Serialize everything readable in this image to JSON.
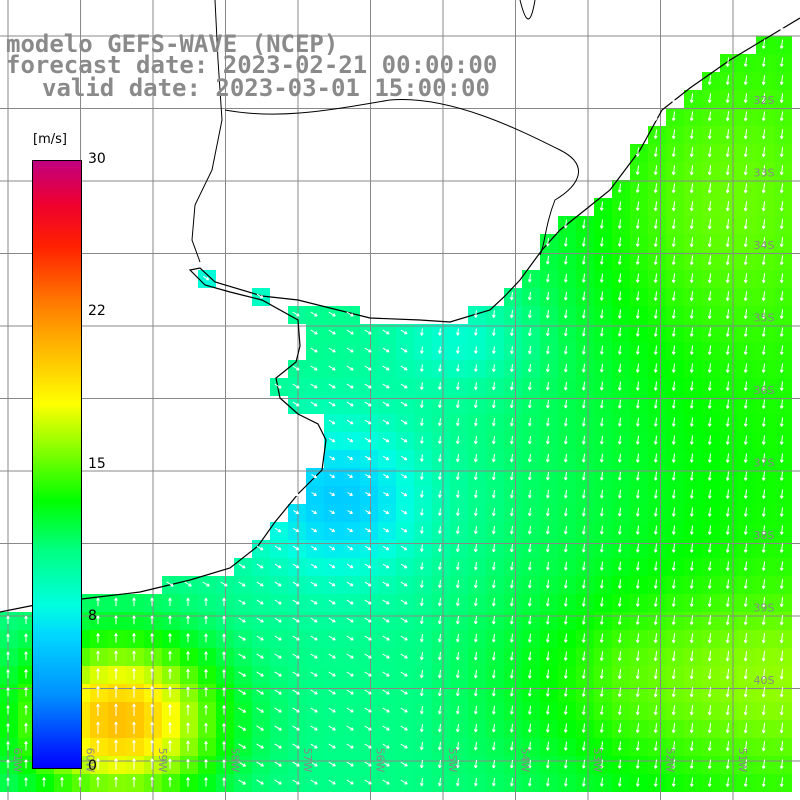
{
  "header": {
    "line1": "modelo GEFS-WAVE (NCEP)",
    "line2": "forecast date: 2023-02-21 00:00:00",
    "line3": "valid date: 2023-03-01 15:00:00"
  },
  "colorbar": {
    "units": "[m/s]",
    "min": 0,
    "max": 30,
    "ticks": [
      "30",
      "22",
      "15",
      "8",
      "0"
    ],
    "colors": [
      "#0000ff",
      "#00d8ff",
      "#00ff80",
      "#00ff00",
      "#ffff00",
      "#ff8000",
      "#ff2000",
      "#c00080"
    ]
  },
  "axes": {
    "lon_labels": [
      "61W",
      "60W",
      "59W",
      "58W",
      "57W",
      "56W",
      "55W",
      "54W",
      "53W",
      "52W",
      "51W"
    ],
    "lat_labels": [
      "32S",
      "33S",
      "34S",
      "35S",
      "36S",
      "37S",
      "38S",
      "39S",
      "40S"
    ]
  },
  "colors": {
    "land": "#ffffff",
    "coastline": "#000000",
    "grid": "#888888",
    "arrows": "#ffffff"
  }
}
